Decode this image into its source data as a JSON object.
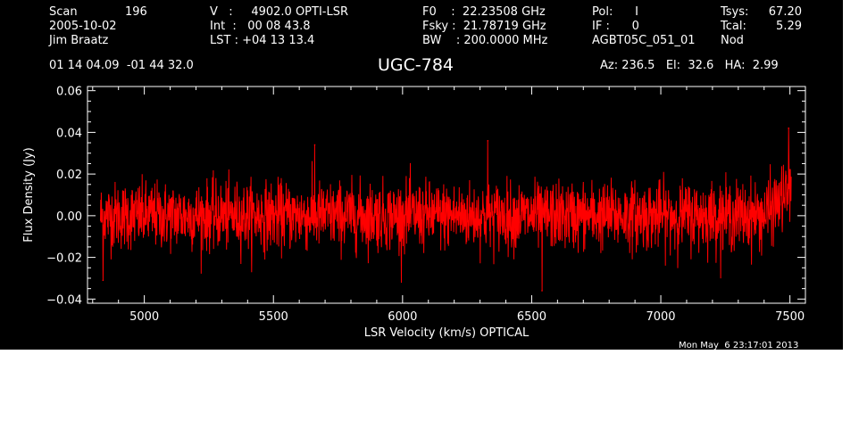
{
  "header": {
    "scan_label": "Scan",
    "scan_number": "196",
    "date": "2005-10-02",
    "observer": "Jim Braatz",
    "velocity": "V   :     4902.0 OPTI-LSR",
    "int_time": "Int  :   00 08 43.8",
    "lst": "LST : +04 13 13.4",
    "f0": "F0    :  22.23508 GHz",
    "fsky": "Fsky :  21.78719 GHz",
    "bw": "BW    : 200.0000 MHz",
    "pol": "Pol:      I",
    "if": "IF :      0",
    "project": "AGBT05C_051_01",
    "tsys_label": "Tsys:",
    "tsys_value": "67.20",
    "tcal_label": "Tcal:",
    "tcal_value": "5.29",
    "nod": "Nod",
    "coords": "01 14 04.09  -01 44 32.0",
    "source": "UGC-784",
    "az_el_ha": "Az: 236.5   El:  32.6   HA:  2.99",
    "timestamp": "Mon May  6 23:17:01 2013"
  },
  "colors": {
    "background": "#000000",
    "foreground": "#ffffff",
    "trace": "#ff0000"
  },
  "chart_data": {
    "type": "line",
    "title": "UGC-784",
    "xlabel": "LSR Velocity (km/s) OPTICAL",
    "ylabel": "Flux Density (Jy)",
    "xlim": [
      4780,
      7560
    ],
    "ylim": [
      -0.042,
      0.062
    ],
    "x_ticks": [
      5000,
      5500,
      6000,
      6500,
      7000,
      7500
    ],
    "y_ticks": [
      -0.04,
      -0.02,
      0.0,
      0.02,
      0.04,
      0.06
    ],
    "x_tick_labels": [
      "5000",
      "5500",
      "6000",
      "6500",
      "7000",
      "7500"
    ],
    "y_tick_labels": [
      "−0.04",
      "−0.02",
      "0.00",
      "0.02",
      "0.04",
      "0.06"
    ],
    "series": [
      {
        "color": "#ff0000",
        "x_start": 4830,
        "x_end": 7505,
        "baseline": 0.0,
        "noise_rms": 0.008,
        "y_min_observed": -0.037,
        "y_max_observed": 0.042,
        "features": [
          {
            "x": 4840,
            "y": -0.031,
            "note": ""
          },
          {
            "x": 5660,
            "y": 0.034,
            "note": ""
          },
          {
            "x": 6330,
            "y": 0.036,
            "note": ""
          },
          {
            "x": 6540,
            "y": -0.036,
            "note": ""
          },
          {
            "x": 7495,
            "y": 0.042,
            "note": ""
          }
        ]
      }
    ]
  }
}
